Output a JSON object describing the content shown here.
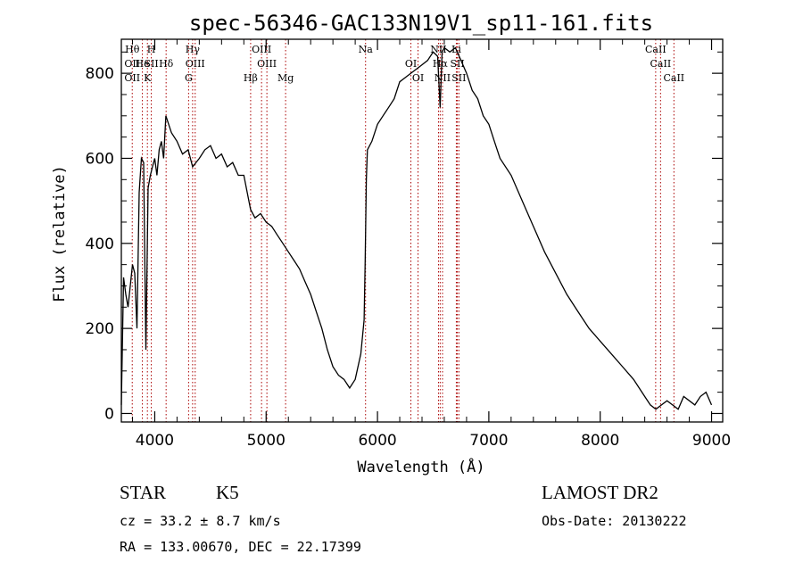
{
  "chart_data": {
    "type": "line",
    "title": "spec-56346-GAC133N19V1_sp11-161.fits",
    "xlabel": "Wavelength (Å)",
    "ylabel": "Flux (relative)",
    "xlim": [
      3700,
      9100
    ],
    "ylim": [
      -20,
      880
    ],
    "xticks": [
      4000,
      5000,
      6000,
      7000,
      8000,
      9000
    ],
    "yticks": [
      0,
      200,
      400,
      600,
      800
    ],
    "x_minor_step": 200,
    "y_minor_step": 50,
    "line_color": "#000000",
    "marker_color": "#aa0000",
    "series": [
      {
        "x": [
          3700,
          3720,
          3740,
          3760,
          3780,
          3800,
          3820,
          3840,
          3860,
          3880,
          3900,
          3920,
          3940,
          3960,
          3980,
          4000,
          4020,
          4040,
          4060,
          4080,
          4100,
          4150,
          4200,
          4250,
          4300,
          4340,
          4400,
          4450,
          4500,
          4550,
          4600,
          4650,
          4700,
          4750,
          4800,
          4860,
          4900,
          4950,
          5000,
          5050,
          5100,
          5150,
          5200,
          5250,
          5300,
          5350,
          5400,
          5450,
          5500,
          5550,
          5600,
          5650,
          5700,
          5750,
          5800,
          5850,
          5880,
          5890,
          5900,
          5910,
          5950,
          6000,
          6050,
          6100,
          6150,
          6200,
          6250,
          6300,
          6350,
          6400,
          6450,
          6500,
          6540,
          6563,
          6580,
          6600,
          6650,
          6700,
          6750,
          6800,
          6850,
          6900,
          6950,
          7000,
          7050,
          7100,
          7200,
          7300,
          7400,
          7500,
          7600,
          7700,
          7800,
          7900,
          8000,
          8100,
          8200,
          8300,
          8400,
          8450,
          8500,
          8550,
          8600,
          8650,
          8700,
          8750,
          8800,
          8850,
          8900,
          8950,
          9000
        ],
        "y": [
          20,
          320,
          280,
          250,
          300,
          350,
          330,
          200,
          520,
          600,
          590,
          150,
          530,
          560,
          580,
          600,
          560,
          620,
          640,
          600,
          700,
          660,
          640,
          610,
          620,
          580,
          600,
          620,
          630,
          600,
          610,
          580,
          590,
          560,
          560,
          480,
          460,
          470,
          450,
          440,
          420,
          400,
          380,
          360,
          340,
          310,
          280,
          240,
          200,
          150,
          110,
          90,
          80,
          60,
          80,
          140,
          220,
          360,
          550,
          620,
          640,
          680,
          700,
          720,
          740,
          780,
          790,
          800,
          810,
          820,
          830,
          850,
          840,
          720,
          850,
          860,
          850,
          860,
          830,
          800,
          760,
          740,
          700,
          680,
          640,
          600,
          560,
          500,
          440,
          380,
          330,
          280,
          240,
          200,
          170,
          140,
          110,
          80,
          40,
          20,
          10,
          20,
          30,
          20,
          10,
          40,
          30,
          20,
          40,
          50,
          20
        ]
      }
    ],
    "line_markers": [
      {
        "x": 3798,
        "labels": [
          "Hθ",
          "OII",
          "OII"
        ]
      },
      {
        "x": 3889,
        "labels": [
          "He"
        ]
      },
      {
        "x": 3934,
        "labels": [
          "K"
        ]
      },
      {
        "x": 3969,
        "labels": [
          "H",
          "SII"
        ]
      },
      {
        "x": 4102,
        "labels": [
          "Hδ"
        ]
      },
      {
        "x": 4304,
        "labels": [
          "G"
        ]
      },
      {
        "x": 4340,
        "labels": [
          "Hγ"
        ]
      },
      {
        "x": 4363,
        "labels": [
          "OIII"
        ]
      },
      {
        "x": 4861,
        "labels": [
          "Hβ"
        ]
      },
      {
        "x": 4959,
        "labels": [
          "OIII"
        ]
      },
      {
        "x": 5007,
        "labels": [
          "OIII"
        ]
      },
      {
        "x": 5175,
        "labels": [
          "Mg"
        ]
      },
      {
        "x": 5893,
        "labels": [
          "Na"
        ]
      },
      {
        "x": 6300,
        "labels": [
          "OI"
        ]
      },
      {
        "x": 6364,
        "labels": [
          "OI"
        ]
      },
      {
        "x": 6548,
        "labels": [
          "NII"
        ]
      },
      {
        "x": 6563,
        "labels": [
          "Hα"
        ]
      },
      {
        "x": 6584,
        "labels": [
          "NII"
        ]
      },
      {
        "x": 6708,
        "labels": [
          "Li"
        ]
      },
      {
        "x": 6717,
        "labels": [
          "SII"
        ]
      },
      {
        "x": 6731,
        "labels": [
          "SII"
        ]
      },
      {
        "x": 8498,
        "labels": [
          "CaII"
        ]
      },
      {
        "x": 8542,
        "labels": [
          "CaII"
        ]
      },
      {
        "x": 8662,
        "labels": [
          "CaII"
        ]
      }
    ]
  },
  "info": {
    "class": "STAR",
    "subclass": "K5",
    "survey": "LAMOST DR2",
    "cz": "cz = 33.2 ± 8.7 km/s",
    "obs_date": "Obs-Date: 20130222",
    "radec": "RA = 133.00670, DEC =  22.17399"
  }
}
